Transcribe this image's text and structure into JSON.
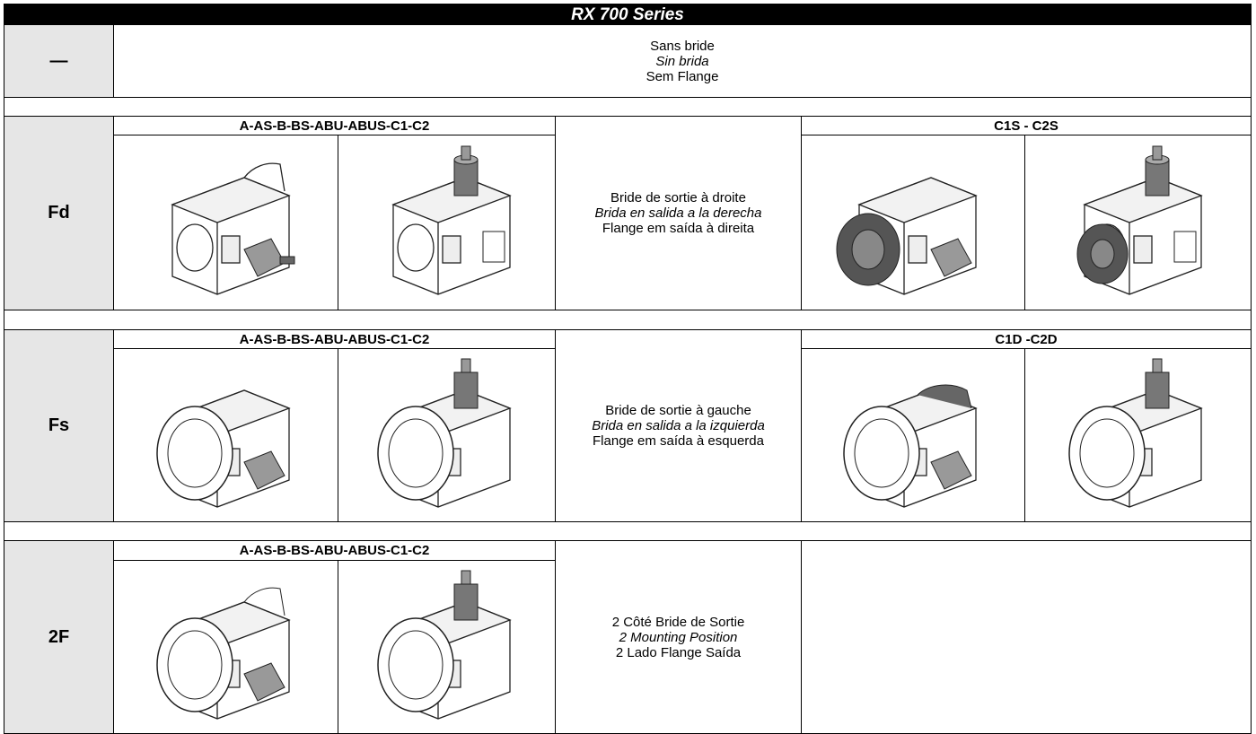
{
  "header": {
    "title": "RX 700 Series"
  },
  "rows": [
    {
      "code": "—",
      "description": [
        "Sans bride",
        "Sin brida",
        "Sem Flange"
      ]
    },
    {
      "code": "Fd",
      "left_group": "A-AS-B-BS-ABU-ABUS-C1-C2",
      "description": [
        "Bride de sortie à droite",
        "Brida en salida a la derecha",
        "Flange em saída à direita"
      ],
      "right_group": "C1S - C2S"
    },
    {
      "code": "Fs",
      "left_group": "A-AS-B-BS-ABU-ABUS-C1-C2",
      "description": [
        "Bride de sortie à gauche",
        "Brida en salida a la izquierda",
        "Flange em saída à esquerda"
      ],
      "right_group": "C1D -C2D"
    },
    {
      "code": "2F",
      "left_group": "A-AS-B-BS-ABU-ABUS-C1-C2",
      "description": [
        "2 Côté Bride de Sortie",
        "2 Mounting Position",
        "2 Lado Flange Saída"
      ]
    }
  ]
}
